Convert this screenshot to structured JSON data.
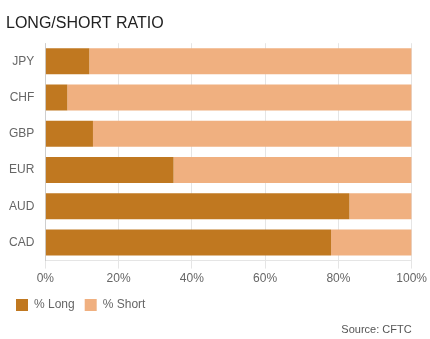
{
  "chart_data": {
    "type": "bar",
    "title": "LONG/SHORT RATIO",
    "orientation": "horizontal",
    "stacked": true,
    "categories": [
      "CAD",
      "AUD",
      "EUR",
      "GBP",
      "CHF",
      "JPY"
    ],
    "series": [
      {
        "name": "% Long",
        "color": "#C07820",
        "values": [
          78,
          83,
          35,
          13,
          6,
          12
        ]
      },
      {
        "name": "% Short",
        "color": "#F0B080",
        "values": [
          22,
          17,
          65,
          87,
          94,
          88
        ]
      }
    ],
    "xlim": [
      0,
      100
    ],
    "xticks": [
      {
        "value": 0,
        "label": "0%"
      },
      {
        "value": 20,
        "label": "20%"
      },
      {
        "value": 40,
        "label": "40%"
      },
      {
        "value": 60,
        "label": "60%"
      },
      {
        "value": 80,
        "label": "80%"
      },
      {
        "value": 100,
        "label": "100%"
      }
    ],
    "grid": true,
    "legend": "bottom",
    "annotation": "Source: CFTC"
  }
}
